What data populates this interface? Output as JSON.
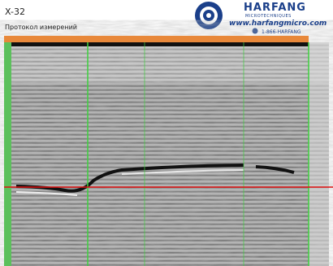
{
  "header": {
    "title": "X-32",
    "subtitle": "Протокол измерений"
  },
  "logo": {
    "brand": "HARFANG",
    "tagline": "MICROTECHNIQUES",
    "website": "www.harfangmicro.com",
    "phone": "1-866-HARFANG"
  }
}
